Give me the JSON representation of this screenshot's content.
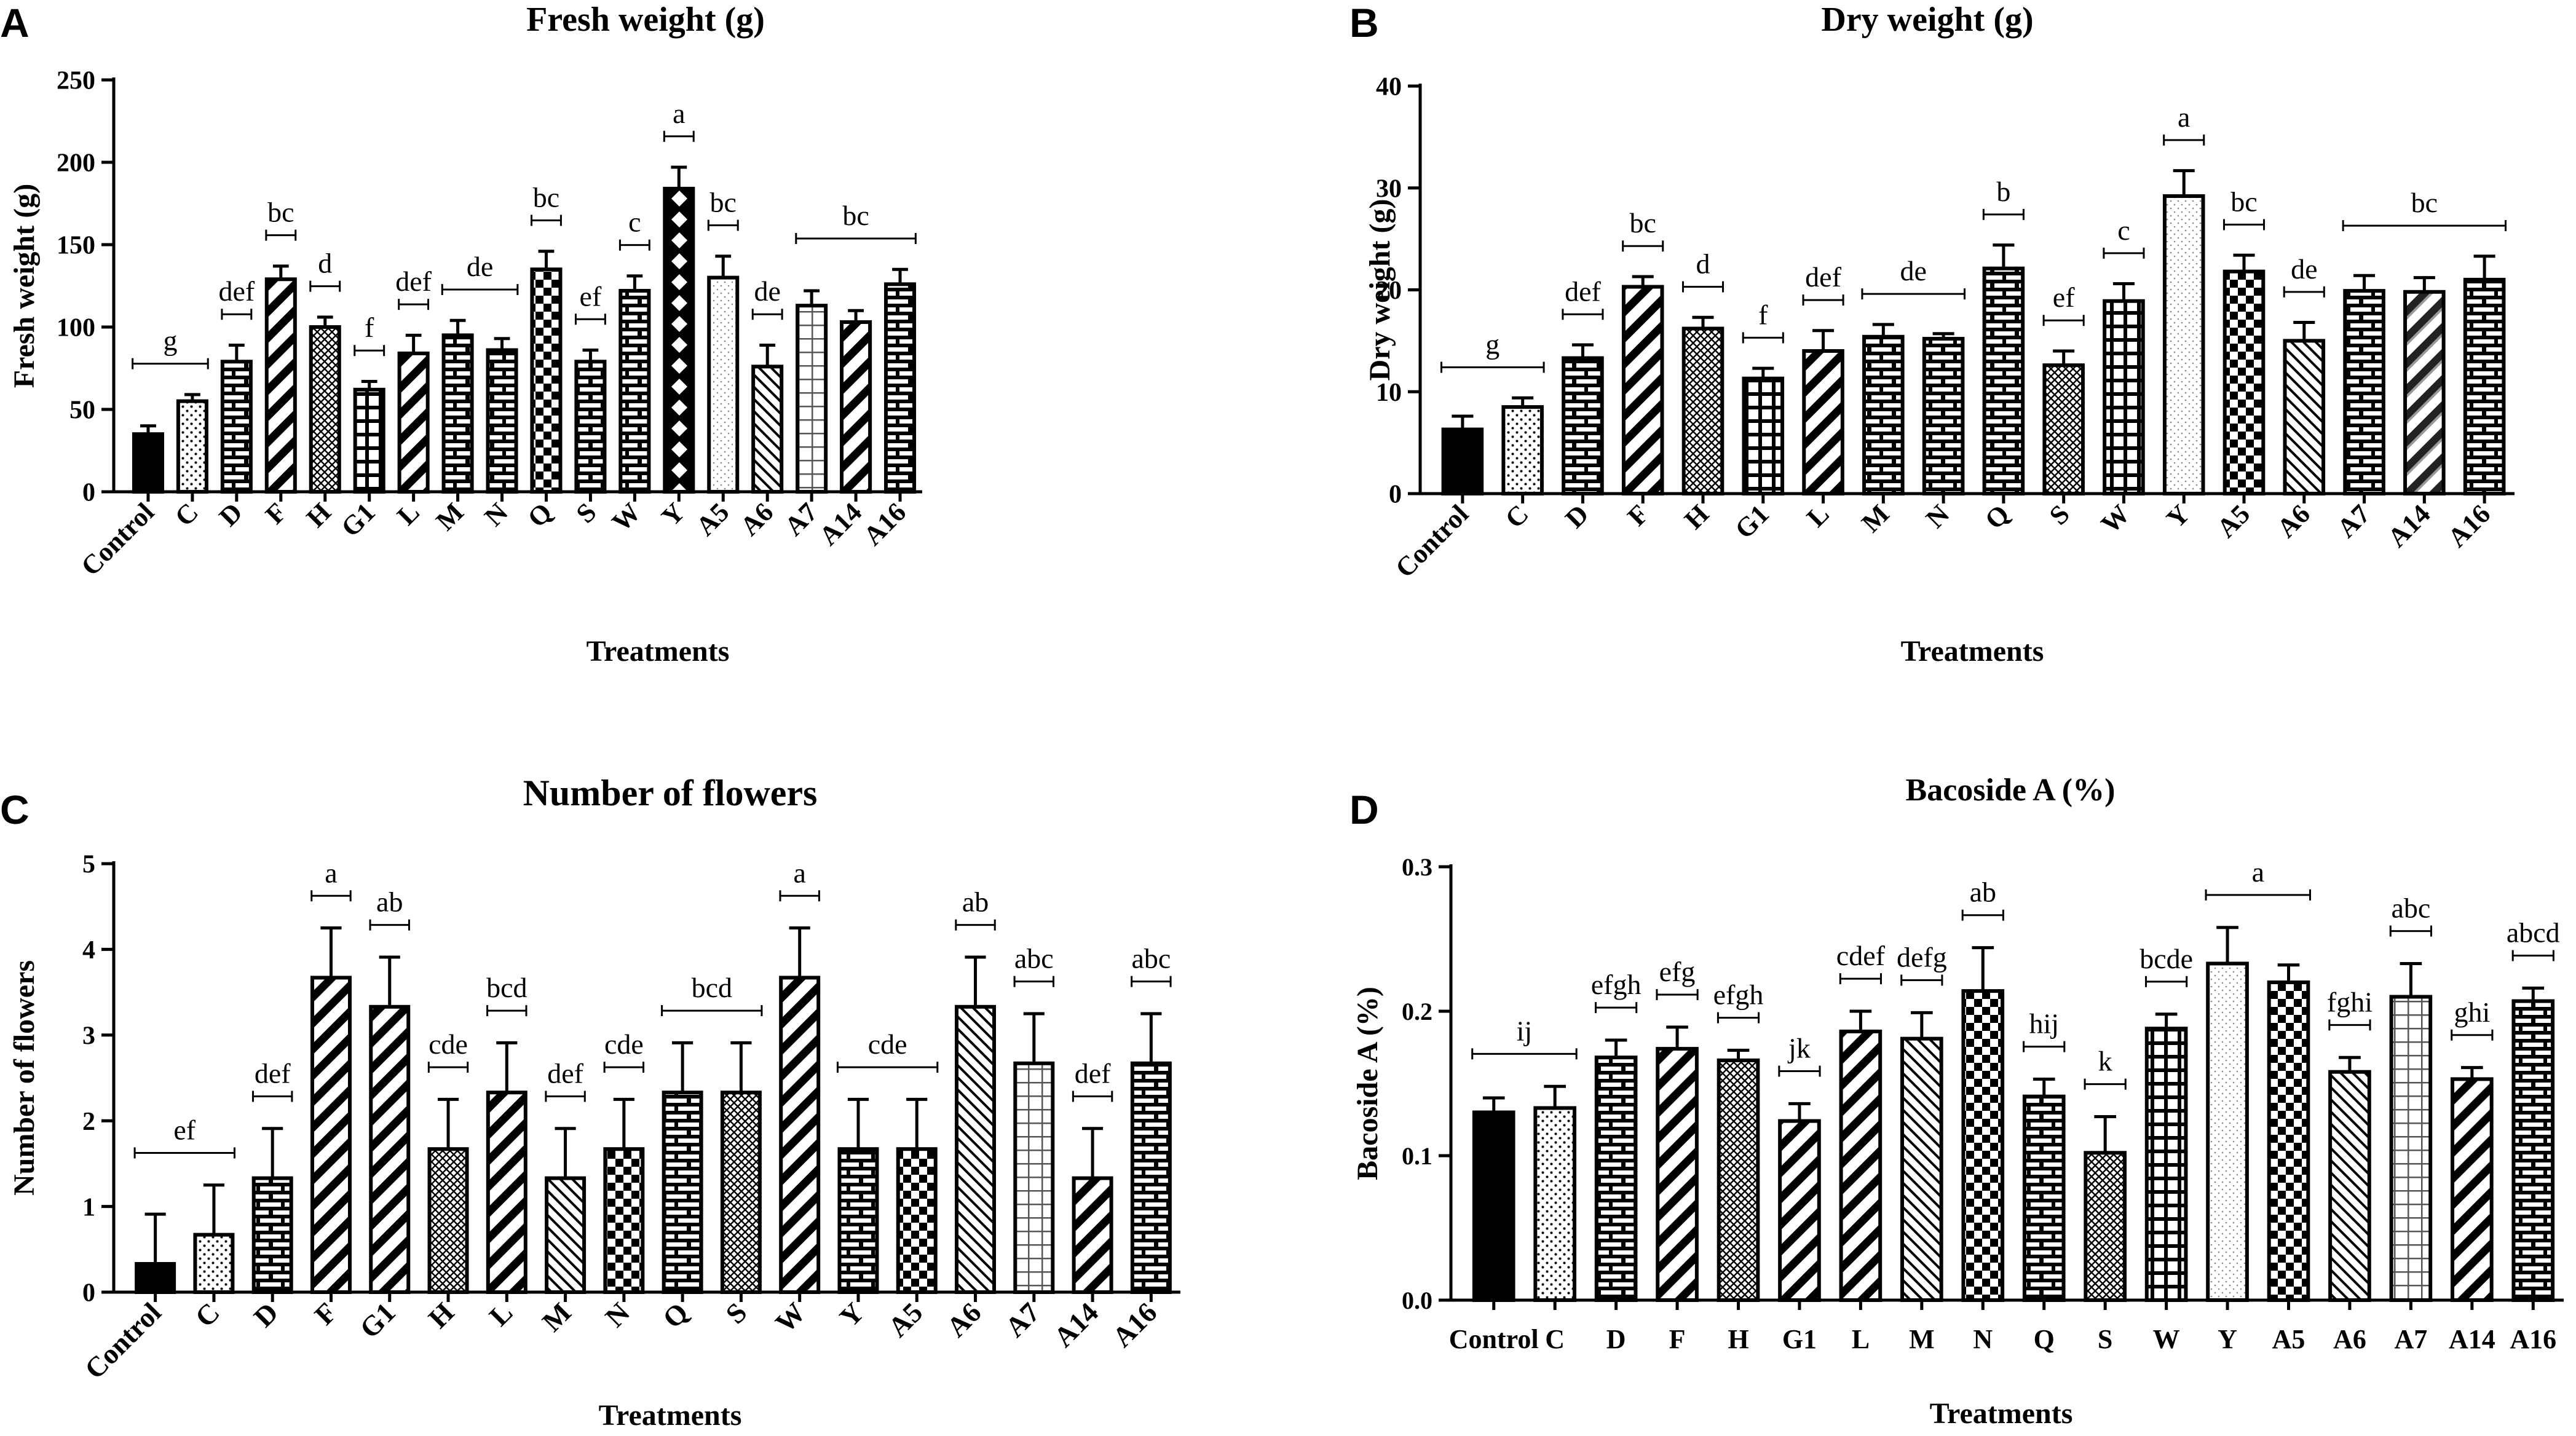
{
  "figure": {
    "background": "#ffffff",
    "ink": "#000000"
  },
  "chart_data": [
    {
      "panel_letter": "A",
      "type": "bar",
      "title": "Fresh weight (g)",
      "xlabel": "Treatments",
      "ylabel": "Fresh weight (g)",
      "ylim": [
        0,
        250
      ],
      "yticks": [
        "0",
        "50",
        "100",
        "150",
        "200",
        "250"
      ],
      "tick_values": [
        0,
        50,
        100,
        150,
        200,
        250
      ],
      "x_label_style": "rotated",
      "categories": [
        "Control",
        "C",
        "D",
        "F",
        "H",
        "G1",
        "L",
        "M",
        "N",
        "Q",
        "S",
        "W",
        "Y",
        "A5",
        "A6",
        "A7",
        "A14",
        "A16"
      ],
      "values": [
        35,
        55,
        79,
        129,
        100,
        62,
        84,
        95,
        86,
        135,
        79,
        122,
        184,
        130,
        76,
        113,
        103,
        126
      ],
      "errors": [
        5,
        4,
        10,
        8,
        6,
        5,
        11,
        9,
        7,
        11,
        7,
        9,
        13,
        13,
        13,
        9,
        7,
        9
      ],
      "patterns": [
        "solid",
        "dots",
        "brick",
        "diag-thick",
        "cross-fine",
        "grid-bold",
        "diag-thick",
        "brick",
        "brick",
        "checker",
        "brick",
        "brick",
        "checker-bold",
        "dots-light",
        "diag-thin",
        "grid-light",
        "diag-thick",
        "brick"
      ],
      "letter_groups": [
        {
          "label": "g",
          "from": "Control",
          "to": "C"
        },
        {
          "label": "def",
          "from": "D",
          "to": "D"
        },
        {
          "label": "bc",
          "from": "F",
          "to": "F"
        },
        {
          "label": "d",
          "from": "H",
          "to": "H"
        },
        {
          "label": "f",
          "from": "G1",
          "to": "G1"
        },
        {
          "label": "def",
          "from": "L",
          "to": "L"
        },
        {
          "label": "de",
          "from": "M",
          "to": "N"
        },
        {
          "label": "bc",
          "from": "Q",
          "to": "Q"
        },
        {
          "label": "ef",
          "from": "S",
          "to": "S"
        },
        {
          "label": "c",
          "from": "W",
          "to": "W"
        },
        {
          "label": "a",
          "from": "Y",
          "to": "Y"
        },
        {
          "label": "bc",
          "from": "A5",
          "to": "A5"
        },
        {
          "label": "de",
          "from": "A6",
          "to": "A6"
        },
        {
          "label": "bc",
          "from": "A7",
          "to": "A16"
        }
      ]
    },
    {
      "panel_letter": "B",
      "type": "bar",
      "title": "Dry weight (g)",
      "xlabel": "Treatments",
      "ylabel": "Dry weight (g)",
      "ylim": [
        0,
        40
      ],
      "yticks": [
        "0",
        "10",
        "20",
        "30",
        "40"
      ],
      "tick_values": [
        0,
        10,
        20,
        30,
        40
      ],
      "x_label_style": "rotated",
      "categories": [
        "Control",
        "C",
        "D",
        "F",
        "H",
        "G1",
        "L",
        "M",
        "N",
        "Q",
        "S",
        "W",
        "Y",
        "A5",
        "A6",
        "A7",
        "A14",
        "A16"
      ],
      "values": [
        6.3,
        8.5,
        13.3,
        20.3,
        16.2,
        11.3,
        14.0,
        15.4,
        15.2,
        22.1,
        12.6,
        18.9,
        29.2,
        21.8,
        15.0,
        19.9,
        19.8,
        21.0
      ],
      "errors": [
        1.3,
        0.9,
        1.3,
        1.0,
        1.1,
        1.0,
        2.0,
        1.2,
        0.5,
        2.3,
        1.4,
        1.7,
        2.5,
        1.6,
        1.8,
        1.5,
        1.4,
        2.3
      ],
      "patterns": [
        "solid",
        "dots",
        "brick",
        "diag-thick",
        "cross-fine",
        "grid-bold",
        "diag-thick",
        "brick",
        "brick",
        "brick",
        "cross-fine",
        "grid-bold",
        "dots-light",
        "checker",
        "diag-thin",
        "brick",
        "diag-thick-grey",
        "brick"
      ],
      "letter_groups": [
        {
          "label": "g",
          "from": "Control",
          "to": "C"
        },
        {
          "label": "def",
          "from": "D",
          "to": "D"
        },
        {
          "label": "bc",
          "from": "F",
          "to": "F"
        },
        {
          "label": "d",
          "from": "H",
          "to": "H"
        },
        {
          "label": "f",
          "from": "G1",
          "to": "G1"
        },
        {
          "label": "def",
          "from": "L",
          "to": "L"
        },
        {
          "label": "de",
          "from": "M",
          "to": "N"
        },
        {
          "label": "b",
          "from": "Q",
          "to": "Q"
        },
        {
          "label": "ef",
          "from": "S",
          "to": "S"
        },
        {
          "label": "c",
          "from": "W",
          "to": "W"
        },
        {
          "label": "a",
          "from": "Y",
          "to": "Y"
        },
        {
          "label": "bc",
          "from": "A5",
          "to": "A5"
        },
        {
          "label": "de",
          "from": "A6",
          "to": "A6"
        },
        {
          "label": "bc",
          "from": "A7",
          "to": "A16"
        }
      ]
    },
    {
      "panel_letter": "C",
      "type": "bar",
      "title": "Number of flowers",
      "xlabel": "Treatments",
      "ylabel": "Number of flowers",
      "ylim": [
        0,
        5
      ],
      "yticks": [
        "0",
        "1",
        "2",
        "3",
        "4",
        "5"
      ],
      "tick_values": [
        0,
        1,
        2,
        3,
        4,
        5
      ],
      "x_label_style": "rotated",
      "categories": [
        "Control",
        "C",
        "D",
        "F",
        "G1",
        "H",
        "L",
        "M",
        "N",
        "Q",
        "S",
        "W",
        "Y",
        "A5",
        "A6",
        "A7",
        "A14",
        "A16"
      ],
      "values": [
        0.33,
        0.67,
        1.33,
        3.67,
        3.33,
        1.67,
        2.33,
        1.33,
        1.67,
        2.33,
        2.33,
        3.67,
        1.67,
        1.67,
        3.33,
        2.67,
        1.33,
        2.67
      ],
      "errors": [
        0.58,
        0.58,
        0.58,
        0.58,
        0.58,
        0.58,
        0.58,
        0.58,
        0.58,
        0.58,
        0.58,
        0.58,
        0.58,
        0.58,
        0.58,
        0.58,
        0.58,
        0.58
      ],
      "patterns": [
        "solid",
        "dots",
        "brick",
        "diag-thick",
        "diag-thick",
        "cross-fine",
        "diag-thick",
        "diag-thin",
        "checker",
        "brick",
        "cross-fine",
        "diag-thick",
        "brick",
        "checker",
        "diag-thin",
        "grid-light",
        "diag-thick",
        "brick"
      ],
      "letter_groups": [
        {
          "label": "ef",
          "from": "Control",
          "to": "C"
        },
        {
          "label": "def",
          "from": "D",
          "to": "D"
        },
        {
          "label": "a",
          "from": "F",
          "to": "F"
        },
        {
          "label": "ab",
          "from": "G1",
          "to": "G1"
        },
        {
          "label": "cde",
          "from": "H",
          "to": "H"
        },
        {
          "label": "bcd",
          "from": "L",
          "to": "L"
        },
        {
          "label": "def",
          "from": "M",
          "to": "M"
        },
        {
          "label": "cde",
          "from": "N",
          "to": "N"
        },
        {
          "label": "bcd",
          "from": "Q",
          "to": "S"
        },
        {
          "label": "a",
          "from": "W",
          "to": "W"
        },
        {
          "label": "cde",
          "from": "Y",
          "to": "A5"
        },
        {
          "label": "ab",
          "from": "A6",
          "to": "A6"
        },
        {
          "label": "abc",
          "from": "A7",
          "to": "A7"
        },
        {
          "label": "def",
          "from": "A14",
          "to": "A14"
        },
        {
          "label": "abc",
          "from": "A16",
          "to": "A16"
        }
      ]
    },
    {
      "panel_letter": "D",
      "type": "bar",
      "title": "Bacoside A (%)",
      "xlabel": "Treatments",
      "ylabel": "Bacoside A (%)",
      "ylim": [
        0,
        0.3
      ],
      "yticks": [
        "0.0",
        "0.1",
        "0.2",
        "0.3"
      ],
      "tick_values": [
        0,
        0.1,
        0.2,
        0.3
      ],
      "x_label_style": "horizontal",
      "categories": [
        "Control",
        "C",
        "D",
        "F",
        "H",
        "G1",
        "L",
        "M",
        "N",
        "Q",
        "S",
        "W",
        "Y",
        "A5",
        "A6",
        "A7",
        "A14",
        "A16"
      ],
      "values": [
        0.13,
        0.133,
        0.168,
        0.174,
        0.166,
        0.124,
        0.186,
        0.181,
        0.214,
        0.141,
        0.102,
        0.188,
        0.233,
        0.22,
        0.158,
        0.21,
        0.153,
        0.207
      ],
      "errors": [
        0.01,
        0.015,
        0.012,
        0.015,
        0.007,
        0.012,
        0.014,
        0.018,
        0.03,
        0.012,
        0.025,
        0.01,
        0.025,
        0.012,
        0.01,
        0.023,
        0.008,
        0.009
      ],
      "patterns": [
        "solid",
        "dots",
        "brick",
        "diag-thick",
        "cross-fine",
        "diag-thick",
        "diag-thick",
        "diag-thin",
        "checker",
        "brick",
        "cross-fine",
        "grid-bold",
        "dots-light",
        "checker",
        "diag-thin",
        "grid-light",
        "diag-thick",
        "brick"
      ],
      "letter_groups": [
        {
          "label": "ij",
          "from": "Control",
          "to": "C"
        },
        {
          "label": "efgh",
          "from": "D",
          "to": "D"
        },
        {
          "label": "efg",
          "from": "F",
          "to": "F"
        },
        {
          "label": "efgh",
          "from": "H",
          "to": "H"
        },
        {
          "label": "jk",
          "from": "G1",
          "to": "G1"
        },
        {
          "label": "cdef",
          "from": "L",
          "to": "L"
        },
        {
          "label": "defg",
          "from": "M",
          "to": "M"
        },
        {
          "label": "ab",
          "from": "N",
          "to": "N"
        },
        {
          "label": "hij",
          "from": "Q",
          "to": "Q"
        },
        {
          "label": "k",
          "from": "S",
          "to": "S"
        },
        {
          "label": "bcde",
          "from": "W",
          "to": "W"
        },
        {
          "label": "a",
          "from": "Y",
          "to": "A5"
        },
        {
          "label": "fghi",
          "from": "A6",
          "to": "A6"
        },
        {
          "label": "abc",
          "from": "A7",
          "to": "A7"
        },
        {
          "label": "ghi",
          "from": "A14",
          "to": "A14"
        },
        {
          "label": "abcd",
          "from": "A16",
          "to": "A16"
        }
      ]
    }
  ]
}
